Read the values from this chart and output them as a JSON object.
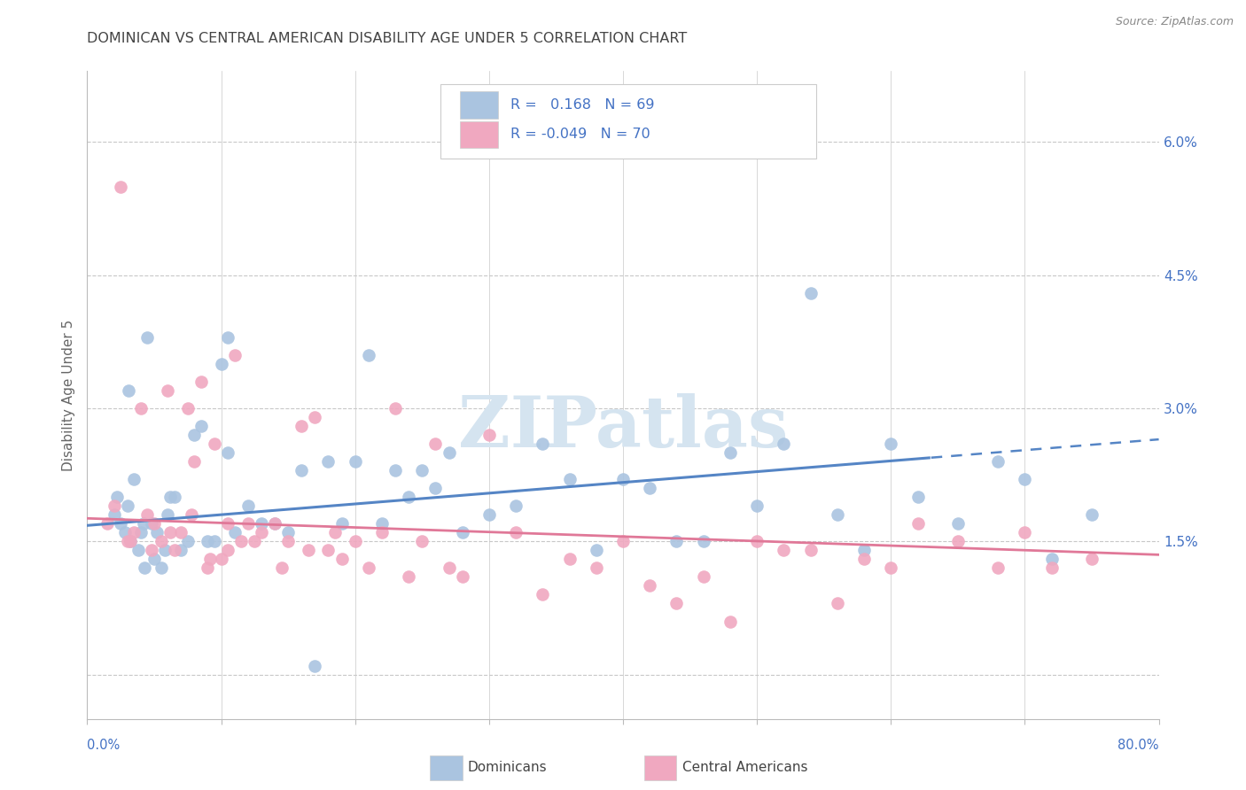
{
  "title": "DOMINICAN VS CENTRAL AMERICAN DISABILITY AGE UNDER 5 CORRELATION CHART",
  "source": "Source: ZipAtlas.com",
  "ylabel": "Disability Age Under 5",
  "xlim": [
    0.0,
    80.0
  ],
  "ylim": [
    -0.5,
    6.8
  ],
  "ytick_vals": [
    0.0,
    1.5,
    3.0,
    4.5,
    6.0
  ],
  "ytick_labels": [
    "",
    "1.5%",
    "3.0%",
    "4.5%",
    "6.0%"
  ],
  "blue_color": "#aac4e0",
  "pink_color": "#f0a8c0",
  "trend_blue": "#5585c5",
  "trend_pink": "#e07898",
  "watermark_color": "#d5e4f0",
  "legend_edge_color": "#cccccc",
  "grid_color": "#c8c8c8",
  "spine_color": "#bbbbbb",
  "title_color": "#444444",
  "label_color": "#666666",
  "right_axis_color": "#4472c4",
  "source_color": "#888888",
  "dominicans_x": [
    2.0,
    2.2,
    2.5,
    2.8,
    3.0,
    3.2,
    3.5,
    3.8,
    4.0,
    4.2,
    4.5,
    4.8,
    5.0,
    5.2,
    5.5,
    5.8,
    6.0,
    6.5,
    7.0,
    7.5,
    8.0,
    8.5,
    9.0,
    9.5,
    10.0,
    10.5,
    11.0,
    12.0,
    13.0,
    14.0,
    15.0,
    16.0,
    17.0,
    18.0,
    19.0,
    20.0,
    21.0,
    22.0,
    23.0,
    24.0,
    25.0,
    26.0,
    27.0,
    28.0,
    30.0,
    32.0,
    34.0,
    36.0,
    38.0,
    40.0,
    42.0,
    44.0,
    46.0,
    48.0,
    50.0,
    52.0,
    54.0,
    56.0,
    58.0,
    60.0,
    62.0,
    65.0,
    68.0,
    70.0,
    72.0,
    75.0,
    3.1,
    4.3,
    6.2,
    10.5
  ],
  "dominicans_y": [
    1.8,
    2.0,
    1.7,
    1.6,
    1.9,
    1.5,
    2.2,
    1.4,
    1.6,
    1.7,
    3.8,
    1.7,
    1.3,
    1.6,
    1.2,
    1.4,
    1.8,
    2.0,
    1.4,
    1.5,
    2.7,
    2.8,
    1.5,
    1.5,
    3.5,
    2.5,
    1.6,
    1.9,
    1.7,
    1.7,
    1.6,
    2.3,
    0.1,
    2.4,
    1.7,
    2.4,
    3.6,
    1.7,
    2.3,
    2.0,
    2.3,
    2.1,
    2.5,
    1.6,
    1.8,
    1.9,
    2.6,
    2.2,
    1.4,
    2.2,
    2.1,
    1.5,
    1.5,
    2.5,
    1.9,
    2.6,
    4.3,
    1.8,
    1.4,
    2.6,
    2.0,
    1.7,
    2.4,
    2.2,
    1.3,
    1.8,
    3.2,
    1.2,
    2.0,
    3.8
  ],
  "central_x": [
    1.5,
    2.0,
    2.5,
    3.0,
    3.5,
    4.0,
    4.5,
    5.0,
    5.5,
    6.0,
    6.5,
    7.0,
    7.5,
    8.0,
    8.5,
    9.0,
    9.5,
    10.0,
    10.5,
    11.0,
    11.5,
    12.0,
    13.0,
    14.0,
    15.0,
    16.0,
    17.0,
    18.0,
    19.0,
    20.0,
    21.0,
    22.0,
    23.0,
    24.0,
    25.0,
    26.0,
    27.0,
    28.0,
    30.0,
    32.0,
    34.0,
    36.0,
    38.0,
    40.0,
    42.0,
    44.0,
    46.0,
    48.0,
    50.0,
    52.0,
    54.0,
    56.0,
    58.0,
    60.0,
    62.0,
    65.0,
    68.0,
    70.0,
    72.0,
    75.0,
    3.2,
    4.8,
    6.2,
    7.8,
    9.2,
    10.5,
    12.5,
    14.5,
    16.5,
    18.5
  ],
  "central_y": [
    1.7,
    1.9,
    5.5,
    1.5,
    1.6,
    3.0,
    1.8,
    1.7,
    1.5,
    3.2,
    1.4,
    1.6,
    3.0,
    2.4,
    3.3,
    1.2,
    2.6,
    1.3,
    1.4,
    3.6,
    1.5,
    1.7,
    1.6,
    1.7,
    1.5,
    2.8,
    2.9,
    1.4,
    1.3,
    1.5,
    1.2,
    1.6,
    3.0,
    1.1,
    1.5,
    2.6,
    1.2,
    1.1,
    2.7,
    1.6,
    0.9,
    1.3,
    1.2,
    1.5,
    1.0,
    0.8,
    1.1,
    0.6,
    1.5,
    1.4,
    1.4,
    0.8,
    1.3,
    1.2,
    1.7,
    1.5,
    1.2,
    1.6,
    1.2,
    1.3,
    1.5,
    1.4,
    1.6,
    1.8,
    1.3,
    1.7,
    1.5,
    1.2,
    1.4,
    1.6
  ],
  "blue_trend_x0": 0.0,
  "blue_trend_y0": 1.68,
  "blue_trend_x1": 80.0,
  "blue_trend_y1": 2.65,
  "blue_solid_end": 63.0,
  "pink_trend_x0": 0.0,
  "pink_trend_y0": 1.76,
  "pink_trend_x1": 80.0,
  "pink_trend_y1": 1.35
}
